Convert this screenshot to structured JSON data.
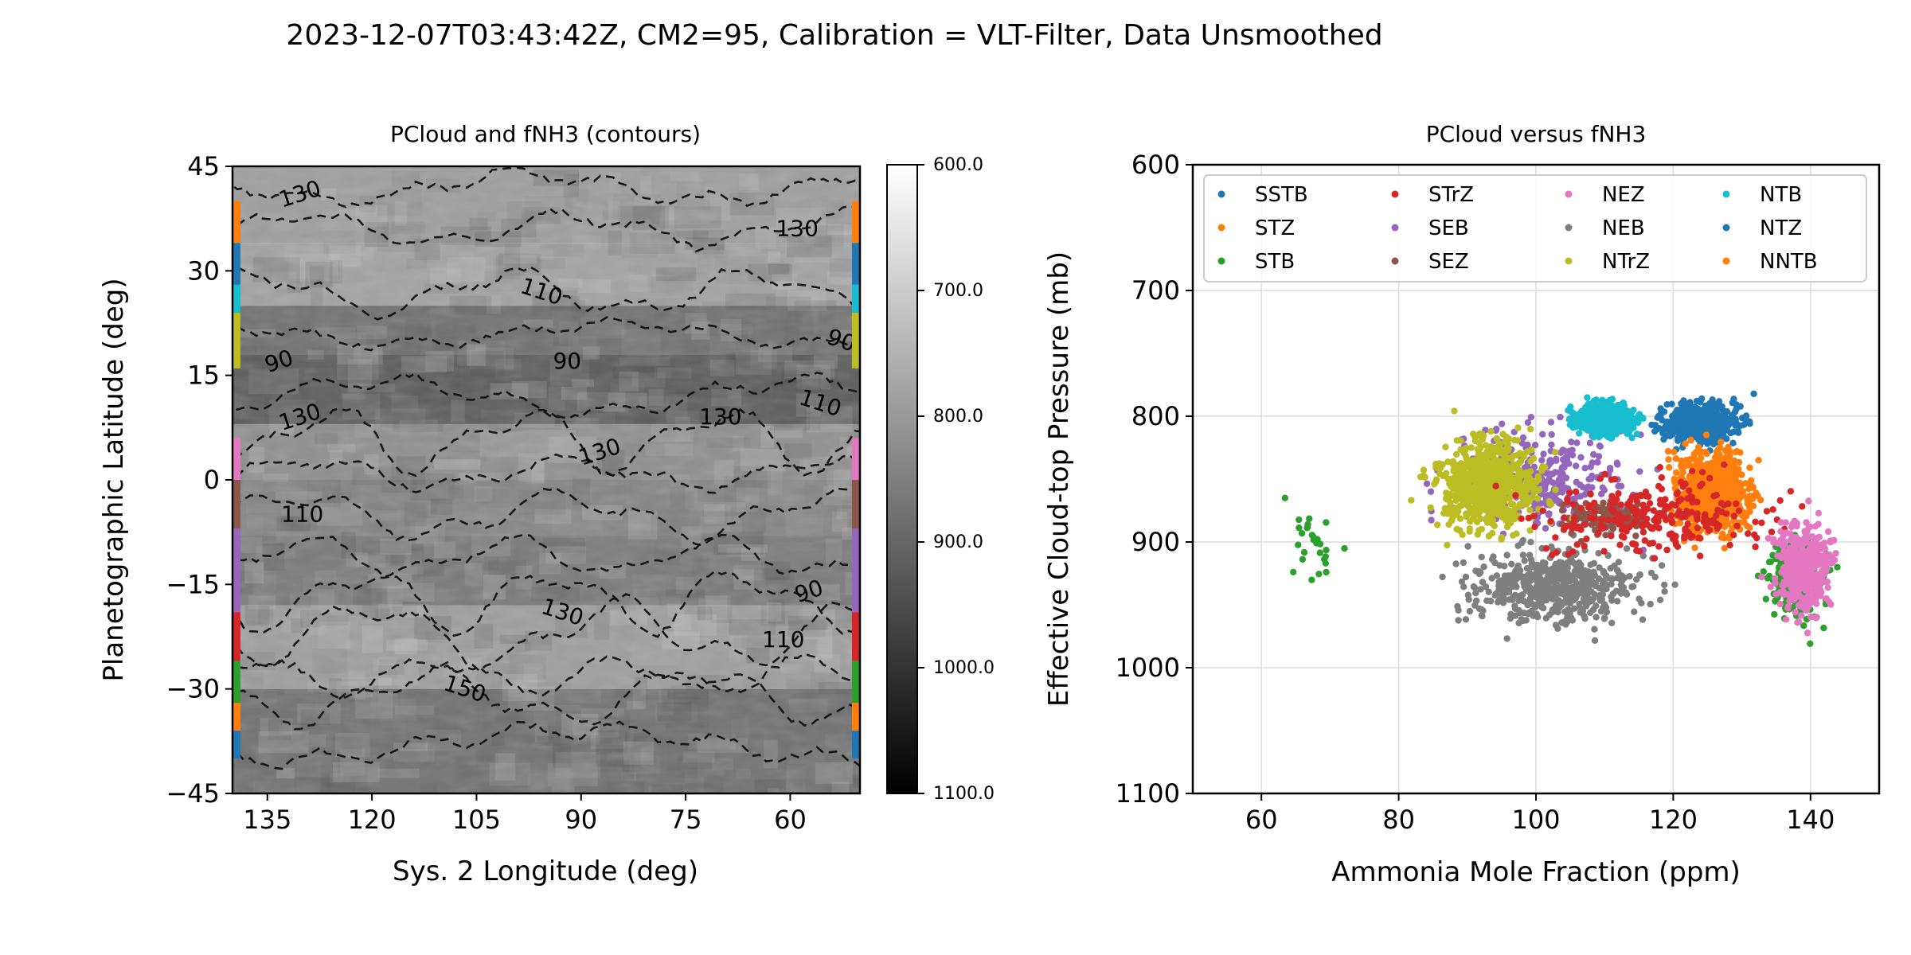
{
  "figure": {
    "title": "2023-12-07T03:43:42Z, CM2=95, Calibration = VLT-Filter, Data Unsmoothed"
  },
  "chart_data": [
    {
      "type": "heatmap",
      "title": "PCloud and fNH3 (contours)",
      "xlabel": "Sys. 2 Longitude (deg)",
      "ylabel": "Planetographic Latitude (deg)",
      "xlim": [
        140,
        50
      ],
      "ylim": [
        -45,
        45
      ],
      "xticks": [
        135,
        120,
        105,
        90,
        75,
        60
      ],
      "xtick_labels": [
        "135",
        "120",
        "105",
        "90",
        "75",
        "60"
      ],
      "yticks": [
        45,
        30,
        15,
        0,
        -15,
        -30,
        -45
      ],
      "ytick_labels": [
        "45",
        "30",
        "15",
        "0",
        "−15",
        "−30",
        "−45"
      ],
      "colormap": "gray_r",
      "colorbar": {
        "range": [
          600,
          1100
        ],
        "ticks": [
          600,
          700,
          800,
          900,
          1000,
          1100
        ],
        "tick_labels": [
          "600.0",
          "700.0",
          "800.0",
          "900.0",
          "1000.0",
          "1100.0"
        ]
      },
      "pcloud_latitude_bands": [
        {
          "lat_range": [
            34,
            45
          ],
          "pcloud_mb": 790
        },
        {
          "lat_range": [
            25,
            34
          ],
          "pcloud_mb": 780
        },
        {
          "lat_range": [
            18,
            25
          ],
          "pcloud_mb": 880
        },
        {
          "lat_range": [
            8,
            18
          ],
          "pcloud_mb": 920
        },
        {
          "lat_range": [
            0,
            8
          ],
          "pcloud_mb": 820
        },
        {
          "lat_range": [
            -8,
            0
          ],
          "pcloud_mb": 840
        },
        {
          "lat_range": [
            -18,
            -8
          ],
          "pcloud_mb": 860
        },
        {
          "lat_range": [
            -30,
            -18
          ],
          "pcloud_mb": 790
        },
        {
          "lat_range": [
            -45,
            -30
          ],
          "pcloud_mb": 880
        }
      ],
      "contour_labels": [
        {
          "text": "130",
          "lon": 130,
          "lat": 40
        },
        {
          "text": "130",
          "lon": 59,
          "lat": 35
        },
        {
          "text": "110",
          "lon": 96,
          "lat": 26
        },
        {
          "text": "90",
          "lon": 133,
          "lat": 16
        },
        {
          "text": "90",
          "lon": 92,
          "lat": 16
        },
        {
          "text": "90",
          "lon": 53,
          "lat": 19
        },
        {
          "text": "130",
          "lon": 130,
          "lat": 8
        },
        {
          "text": "130",
          "lon": 70,
          "lat": 8
        },
        {
          "text": "110",
          "lon": 56,
          "lat": 10
        },
        {
          "text": "130",
          "lon": 87,
          "lat": 3
        },
        {
          "text": "110",
          "lon": 130,
          "lat": -6
        },
        {
          "text": "130",
          "lon": 93,
          "lat": -20
        },
        {
          "text": "90",
          "lon": 57,
          "lat": -17
        },
        {
          "text": "110",
          "lon": 61,
          "lat": -24
        },
        {
          "text": "150",
          "lon": 107,
          "lat": -31
        }
      ],
      "edge_zone_markers": [
        {
          "zone": "NNTB",
          "lat_range": [
            34,
            40
          ],
          "color": "#ff7f0e"
        },
        {
          "zone": "NTZ",
          "lat_range": [
            28,
            34
          ],
          "color": "#1f77b4"
        },
        {
          "zone": "NTB",
          "lat_range": [
            24,
            28
          ],
          "color": "#17becf"
        },
        {
          "zone": "NTrZ",
          "lat_range": [
            16,
            24
          ],
          "color": "#bcbd22"
        },
        {
          "zone": "NEB",
          "lat_range": [
            6,
            16
          ],
          "color": "#ffffff"
        },
        {
          "zone": "NEZ",
          "lat_range": [
            0,
            6
          ],
          "color": "#e377c2"
        },
        {
          "zone": "SEZ",
          "lat_range": [
            -7,
            0
          ],
          "color": "#8c564b"
        },
        {
          "zone": "SEB",
          "lat_range": [
            -19,
            -7
          ],
          "color": "#9467bd"
        },
        {
          "zone": "STrZ",
          "lat_range": [
            -26,
            -19
          ],
          "color": "#d62728"
        },
        {
          "zone": "STB",
          "lat_range": [
            -32,
            -26
          ],
          "color": "#2ca02c"
        },
        {
          "zone": "STZ",
          "lat_range": [
            -36,
            -32
          ],
          "color": "#ff7f0e"
        },
        {
          "zone": "SSTB",
          "lat_range": [
            -40,
            -36
          ],
          "color": "#1f77b4"
        }
      ]
    },
    {
      "type": "scatter",
      "title": "PCloud versus fNH3",
      "xlabel": "Ammonia Mole Fraction (ppm)",
      "ylabel": "Effective Cloud-top Pressure (mb)",
      "xlim": [
        50,
        150
      ],
      "ylim": [
        1100,
        600
      ],
      "xticks": [
        60,
        80,
        100,
        120,
        140
      ],
      "yticks": [
        600,
        700,
        800,
        900,
        1000,
        1100
      ],
      "grid": true,
      "legend": {
        "placement": "top",
        "columns": 4
      },
      "series": [
        {
          "name": "SSTB",
          "color": "#1f77b4"
        },
        {
          "name": "STZ",
          "color": "#ff7f0e"
        },
        {
          "name": "STB",
          "color": "#2ca02c"
        },
        {
          "name": "STrZ",
          "color": "#d62728"
        },
        {
          "name": "SEB",
          "color": "#9467bd"
        },
        {
          "name": "SEZ",
          "color": "#8c564b"
        },
        {
          "name": "NEZ",
          "color": "#e377c2"
        },
        {
          "name": "NEB",
          "color": "#7f7f7f"
        },
        {
          "name": "NTrZ",
          "color": "#bcbd22"
        },
        {
          "name": "NTB",
          "color": "#17becf"
        },
        {
          "name": "NTZ",
          "color": "#1f77b4"
        },
        {
          "name": "NNTB",
          "color": "#ff7f0e"
        }
      ],
      "point_clusters": [
        {
          "series": "NEB",
          "x_center": 103,
          "x_spread": 30,
          "y_center": 935,
          "y_spread": 65,
          "count": 520
        },
        {
          "series": "SEB",
          "x_center": 100,
          "x_spread": 28,
          "y_center": 850,
          "y_spread": 90,
          "count": 320
        },
        {
          "series": "SEZ",
          "x_center": 110,
          "x_spread": 12,
          "y_center": 880,
          "y_spread": 30,
          "count": 140
        },
        {
          "series": "NTrZ",
          "x_center": 93,
          "x_spread": 16,
          "y_center": 855,
          "y_spread": 80,
          "count": 700
        },
        {
          "series": "NTB",
          "x_center": 110,
          "x_spread": 10,
          "y_center": 803,
          "y_spread": 28,
          "count": 500
        },
        {
          "series": "NTZ",
          "x_center": 124,
          "x_spread": 12,
          "y_center": 805,
          "y_spread": 35,
          "count": 520
        },
        {
          "series": "NNTB",
          "x_center": 126,
          "x_spread": 12,
          "y_center": 860,
          "y_spread": 75,
          "count": 650
        },
        {
          "series": "STrZ",
          "x_center": 118,
          "x_spread": 38,
          "y_center": 880,
          "y_spread": 70,
          "count": 260
        },
        {
          "series": "STB",
          "x_center": 138,
          "x_spread": 10,
          "y_center": 930,
          "y_spread": 70,
          "count": 230
        },
        {
          "series": "STB",
          "x_center": 68,
          "x_spread": 8,
          "y_center": 900,
          "y_spread": 70,
          "count": 30
        },
        {
          "series": "NEZ",
          "x_center": 139,
          "x_spread": 9,
          "y_center": 920,
          "y_spread": 80,
          "count": 420
        }
      ]
    }
  ]
}
